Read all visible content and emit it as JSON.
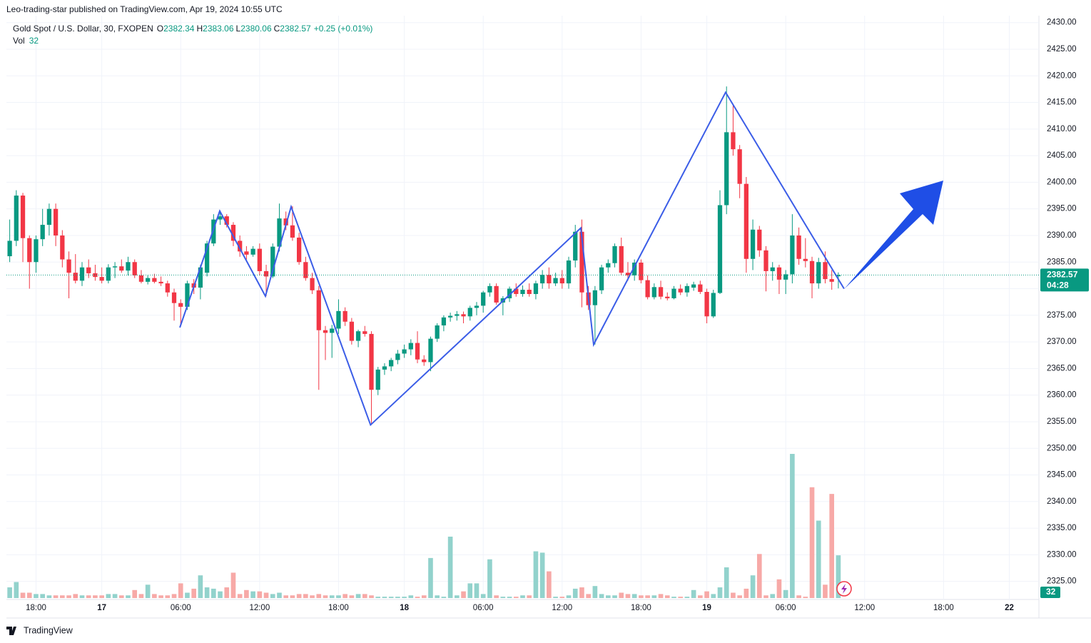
{
  "header": "Leo-trading-star published on TradingView.com, Apr 19, 2024 10:55 UTC",
  "footer": "TradingView",
  "chart_data": {
    "type": "candlestick",
    "legend": {
      "symbol": "Gold Spot / U.S. Dollar, 30, FXOPEN",
      "open_label": "O",
      "high_label": "H",
      "low_label": "L",
      "close_label": "C",
      "change": "+0.25 (+0.01%)",
      "volume_label": "Vol"
    },
    "countdown": "04:28",
    "up_color": "#089981",
    "down_color": "#f23645",
    "volume_up_color": "#92d2cc",
    "volume_down_color": "#f7a9a7",
    "zigzag_color": "#3b5de7",
    "grid": true,
    "xlim": [
      -0.5,
      156.5
    ],
    "xticks": [
      {
        "value": 4,
        "label": "18:00"
      },
      {
        "value": 14,
        "label": "17"
      },
      {
        "value": 26,
        "label": "06:00"
      },
      {
        "value": 38,
        "label": "12:00"
      },
      {
        "value": 50,
        "label": "18:00"
      },
      {
        "value": 60,
        "label": "18"
      },
      {
        "value": 72,
        "label": "06:00"
      },
      {
        "value": 84,
        "label": "12:00"
      },
      {
        "value": 96,
        "label": "18:00"
      },
      {
        "value": 106,
        "label": "19"
      },
      {
        "value": 118,
        "label": "06:00"
      },
      {
        "value": 130,
        "label": "12:00"
      },
      {
        "value": 142,
        "label": "18:00"
      },
      {
        "value": 152,
        "label": "22"
      }
    ],
    "ylim": [
      2321.6,
      2431.3
    ],
    "yticks": [
      {
        "value": 2325,
        "label": "2325.00"
      },
      {
        "value": 2330,
        "label": "2330.00"
      },
      {
        "value": 2335,
        "label": "2335.00"
      },
      {
        "value": 2340,
        "label": "2340.00"
      },
      {
        "value": 2345,
        "label": "2345.00"
      },
      {
        "value": 2350,
        "label": "2350.00"
      },
      {
        "value": 2355,
        "label": "2355.00"
      },
      {
        "value": 2360,
        "label": "2360.00"
      },
      {
        "value": 2365,
        "label": "2365.00"
      },
      {
        "value": 2370,
        "label": "2370.00"
      },
      {
        "value": 2375,
        "label": "2375.00"
      },
      {
        "value": 2380,
        "label": "2380.00"
      },
      {
        "value": 2385,
        "label": "2385.00"
      },
      {
        "value": 2390,
        "label": "2390.00"
      },
      {
        "value": 2395,
        "label": "2395.00"
      },
      {
        "value": 2400,
        "label": "2400.00"
      },
      {
        "value": 2405,
        "label": "2405.00"
      },
      {
        "value": 2410,
        "label": "2410.00"
      },
      {
        "value": 2415,
        "label": "2415.00"
      },
      {
        "value": 2420,
        "label": "2420.00"
      },
      {
        "value": 2425,
        "label": "2425.00"
      },
      {
        "value": 2430,
        "label": "2430.00"
      }
    ],
    "open": [
      2386.1,
      2389,
      2397.5,
      2389.5,
      2385,
      2389.3,
      2392,
      2395,
      2390,
      2385.5,
      2383,
      2381.5,
      2384,
      2382.9,
      2382.2,
      2381.5,
      2384,
      2384.2,
      2383.4,
      2385,
      2382.5,
      2381.3,
      2382,
      2381.3,
      2381,
      2379.3,
      2377.3,
      2376.6,
      2381,
      2380.2,
      2383,
      2388.5,
      2393,
      2393.6,
      2392,
      2389,
      2387,
      2386.4,
      2387.5,
      2383.3,
      2382.3,
      2387.9,
      2393.2,
      2391.9,
      2389.6,
      2385,
      2382,
      2379.7,
      2372.2,
      2371.7,
      2372.5,
      2375.8,
      2373.8,
      2370.2,
      2372,
      2371.5,
      2361,
      2364.8,
      2365.4,
      2366.6,
      2367.8,
      2368.6,
      2369.8,
      2366.7,
      2366.2,
      2370.6,
      2373.1,
      2374.6,
      2374.9,
      2375.2,
      2374.8,
      2376.4,
      2376.8,
      2379.3,
      2380.5,
      2377.4,
      2378.2,
      2380,
      2379,
      2379.8,
      2379,
      2381,
      2382.6,
      2381,
      2382,
      2381,
      2385.3,
      2390.7,
      2379.3,
      2376.9,
      2379.7,
      2384,
      2384.8,
      2388,
      2383,
      2382.5,
      2384.9,
      2381.6,
      2378.4,
      2380.3,
      2378.5,
      2378.2,
      2380,
      2379.3,
      2380.2,
      2380.8,
      2379.4,
      2374.8,
      2379.2,
      2395.7,
      2409.4,
      2406.2,
      2399.7,
      2385.6,
      2391.1,
      2387.2,
      2383.3,
      2384,
      2381.7,
      2382.7,
      2390,
      2385.6,
      2385.2,
      2381,
      2385,
      2381.8,
      2382.34
    ],
    "high": [
      2393,
      2398.5,
      2398,
      2390,
      2390,
      2395,
      2396,
      2396,
      2391,
      2387,
      2386.5,
      2385,
      2385.5,
      2384.5,
      2384,
      2384.6,
      2385,
      2385.5,
      2386,
      2385.5,
      2383.5,
      2382.5,
      2382.8,
      2382.3,
      2381.5,
      2380,
      2378,
      2381.5,
      2381.8,
      2384.5,
      2389,
      2394,
      2394.5,
      2394,
      2392.5,
      2390,
      2388,
      2388,
      2388.5,
      2384.5,
      2388.5,
      2396,
      2394.5,
      2395.5,
      2390.5,
      2386,
      2383,
      2380.5,
      2373,
      2373.2,
      2378,
      2376.5,
      2374.5,
      2372.3,
      2373,
      2372,
      2365.3,
      2366,
      2367,
      2368.5,
      2369.5,
      2370.5,
      2372,
      2367.5,
      2371,
      2373.5,
      2375,
      2375.5,
      2375.8,
      2375.7,
      2376.8,
      2377.5,
      2379.6,
      2381,
      2381,
      2378.6,
      2380.4,
      2381,
      2380.6,
      2381,
      2381.5,
      2383.5,
      2384,
      2383,
      2383.5,
      2386,
      2392,
      2393,
      2380.5,
      2380.5,
      2384.5,
      2385.5,
      2388.5,
      2389.6,
      2385,
      2385.5,
      2385.5,
      2382.5,
      2381,
      2381.5,
      2379.3,
      2380.5,
      2380.8,
      2381,
      2381.3,
      2381.5,
      2380,
      2379.8,
      2398.5,
      2418,
      2414.5,
      2407,
      2401,
      2393,
      2391.8,
      2388,
      2385,
      2384.5,
      2383.5,
      2394,
      2391.5,
      2389.5,
      2386,
      2385.8,
      2387,
      2383.5,
      2383.06
    ],
    "low": [
      2385,
      2388,
      2385,
      2380,
      2383,
      2388,
      2390,
      2388,
      2384,
      2378.2,
      2381,
      2380.5,
      2382,
      2381.5,
      2381,
      2381,
      2382,
      2383,
      2382.5,
      2382,
      2381,
      2380.8,
      2381,
      2380.5,
      2378.5,
      2374,
      2373,
      2376,
      2379,
      2378,
      2382.3,
      2388,
      2392,
      2391.5,
      2388,
      2386,
      2385.5,
      2386,
      2382.5,
      2378.6,
      2382,
      2387,
      2391,
      2389,
      2384.5,
      2381.5,
      2379,
      2361,
      2366.6,
      2367,
      2371.5,
      2373,
      2369.5,
      2369,
      2371,
      2354.5,
      2360,
      2363.8,
      2364.5,
      2365.8,
      2367,
      2367.5,
      2366,
      2365.5,
      2364.5,
      2370,
      2372,
      2373.8,
      2374,
      2373.5,
      2374,
      2375,
      2375.5,
      2378.5,
      2377,
      2375,
      2377.5,
      2378.5,
      2378.5,
      2378.5,
      2378,
      2380,
      2380,
      2380.5,
      2380,
      2380,
      2384,
      2376.5,
      2376,
      2369.5,
      2379,
      2383,
      2384,
      2382.5,
      2381.5,
      2381.5,
      2381,
      2378,
      2378,
      2378,
      2377.8,
      2378,
      2378.8,
      2378.5,
      2379.6,
      2379,
      2373.5,
      2374.5,
      2379,
      2394,
      2405,
      2397,
      2383,
      2383.5,
      2386,
      2379.5,
      2381.5,
      2379,
      2379,
      2381,
      2384.5,
      2384,
      2378.2,
      2380,
      2381,
      2379.8,
      2380.06
    ],
    "close": [
      2389,
      2397.5,
      2389.5,
      2385,
      2389.3,
      2392,
      2395,
      2390,
      2385.5,
      2383,
      2381.5,
      2384,
      2382.9,
      2382.2,
      2381.5,
      2384,
      2384.2,
      2383.4,
      2385,
      2382.5,
      2381.3,
      2382,
      2381.3,
      2381,
      2379.3,
      2377.3,
      2376.6,
      2381,
      2380.2,
      2384,
      2388.5,
      2393,
      2393.6,
      2392,
      2389,
      2387,
      2386.4,
      2387.5,
      2383.3,
      2382.3,
      2387.9,
      2393.2,
      2391.9,
      2389.6,
      2385,
      2382,
      2379.7,
      2372.2,
      2371.7,
      2372.5,
      2375.8,
      2373.8,
      2370.2,
      2372,
      2371.5,
      2361,
      2364.8,
      2365.4,
      2366.6,
      2367.8,
      2368.6,
      2369.8,
      2366.7,
      2366.2,
      2370.6,
      2373.1,
      2374.6,
      2374.9,
      2375.2,
      2374.8,
      2376.4,
      2376.8,
      2379.3,
      2380.5,
      2377.4,
      2378.2,
      2380,
      2379,
      2379.8,
      2379,
      2381,
      2382.6,
      2381,
      2382,
      2381,
      2385.3,
      2390.7,
      2379.3,
      2376.9,
      2379.7,
      2384,
      2384.8,
      2388,
      2383,
      2382.5,
      2384.9,
      2381.6,
      2378.4,
      2380.3,
      2378.5,
      2378.2,
      2380,
      2379.3,
      2380.5,
      2380.8,
      2379.4,
      2374.8,
      2379.2,
      2395.7,
      2409.4,
      2406.2,
      2399.7,
      2385.6,
      2391.1,
      2387.2,
      2383.3,
      2384,
      2381.7,
      2382.7,
      2390,
      2385.6,
      2385.2,
      2381,
      2385,
      2381.8,
      2381.3,
      2382.57
    ],
    "volume": [
      8,
      12,
      4,
      4,
      3,
      3,
      2,
      2,
      2,
      2,
      3,
      2,
      2,
      2,
      2,
      3,
      3,
      2,
      2,
      6,
      3,
      10,
      3,
      2,
      2,
      3,
      11,
      4,
      7,
      17,
      8,
      7,
      5,
      8,
      19,
      3,
      6,
      5,
      5,
      4,
      3,
      4,
      2,
      2,
      3,
      3,
      2,
      3,
      2,
      2,
      2,
      3,
      2,
      3,
      3,
      2,
      1,
      1,
      1,
      1,
      1,
      2,
      1,
      2,
      30,
      2,
      1,
      46,
      2,
      5,
      11,
      11,
      3,
      29,
      2,
      1,
      1,
      1,
      2,
      2,
      35,
      34,
      20,
      1,
      1,
      2,
      7,
      8,
      3,
      9,
      3,
      2,
      2,
      4,
      3,
      3,
      2,
      2,
      2,
      3,
      2,
      1,
      1,
      1,
      6,
      2,
      5,
      3,
      8,
      23,
      4,
      2,
      7,
      17,
      33,
      2,
      3,
      14,
      6,
      108,
      2,
      1,
      83,
      58,
      10,
      78,
      32
    ],
    "zigzag": {
      "x": [
        25.87,
        31.94,
        38.88,
        42.79,
        54.87,
        86.84,
        88.79,
        108.86,
        126.87
      ],
      "y": [
        2372.7,
        2394.6,
        2378.6,
        2395.4,
        2354.4,
        2391.4,
        2369.5,
        2416.9,
        2380
      ]
    }
  }
}
